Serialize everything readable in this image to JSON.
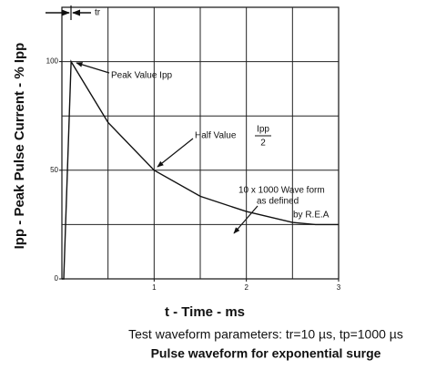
{
  "chart_data": {
    "type": "line",
    "y_label": "Ipp - Peak Pulse Current - % Ipp",
    "x_label": "t - Time - ms",
    "subtitle": "Test waveform parameters: tr=10 µs, tp=1000 µs",
    "title": "Pulse waveform for exponential surge",
    "x": [
      0,
      0.02,
      0.1,
      0.5,
      1,
      1.5,
      2,
      2.5,
      2.75,
      3
    ],
    "series": [
      {
        "name": "10 x 1000 Wave form",
        "color": "#111111",
        "values": [
          0,
          0,
          100,
          72,
          50,
          38,
          31,
          26,
          25,
          25
        ]
      }
    ],
    "xlim": [
      0,
      3
    ],
    "xticks": [
      1,
      2,
      3
    ],
    "xgrid": [
      0.5,
      1,
      1.5,
      2,
      2.5
    ],
    "ylim": [
      0,
      125
    ],
    "yticks": [
      0,
      50,
      100
    ],
    "ygrid": [
      25,
      50,
      75,
      100
    ],
    "grid": true,
    "annotations": {
      "tr": "tr",
      "peak": "Peak Value Ipp",
      "half": "Half Value",
      "half_num": "Ipp",
      "half_den": "2",
      "wave": [
        "10 x 1000 Wave form",
        "as defined",
        "by R.E.A"
      ]
    }
  }
}
